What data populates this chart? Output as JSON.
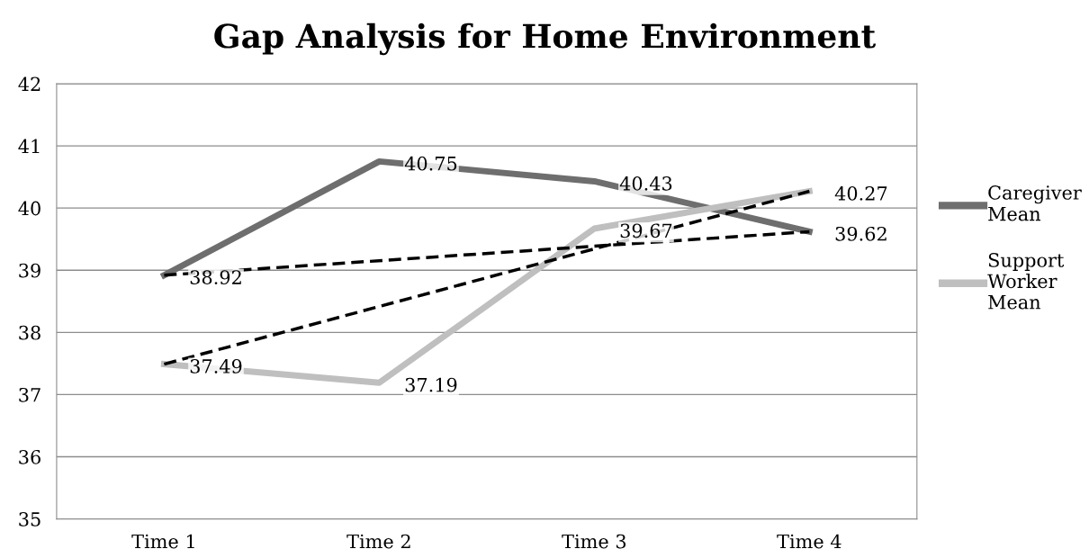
{
  "chart_data": {
    "type": "line",
    "title": "Gap Analysis for Home Environment",
    "categories": [
      "Time 1",
      "Time 2",
      "Time 3",
      "Time 4"
    ],
    "series": [
      {
        "name": "Caregiver Mean",
        "color": "#6e6e6e",
        "values": [
          38.92,
          40.75,
          40.43,
          39.62
        ],
        "value_labels": [
          "38.92",
          "40.75",
          "40.43",
          "39.62"
        ]
      },
      {
        "name": "Support Worker Mean",
        "color": "#bfbfbf",
        "values": [
          37.49,
          37.19,
          39.67,
          40.27
        ],
        "value_labels": [
          "37.49",
          "37.19",
          "39.67",
          "40.27"
        ]
      },
      {
        "type": "line",
        "x": [
          "Time 1",
          "Time 4"
        ],
        "color": "#000000",
        "line_style": "dashed",
        "values": [
          38.92,
          39.62
        ]
      },
      {
        "type": "line",
        "x": [
          "Time 1",
          "Time 4"
        ],
        "color": "#000000",
        "line_style": "dashed",
        "values": [
          37.49,
          40.27
        ]
      }
    ],
    "ylim": [
      35,
      42
    ],
    "yticks": [
      35,
      36,
      37,
      38,
      39,
      40,
      41,
      42
    ],
    "grid": "y",
    "legend": "right",
    "marker": "none",
    "line_style": "solid"
  }
}
